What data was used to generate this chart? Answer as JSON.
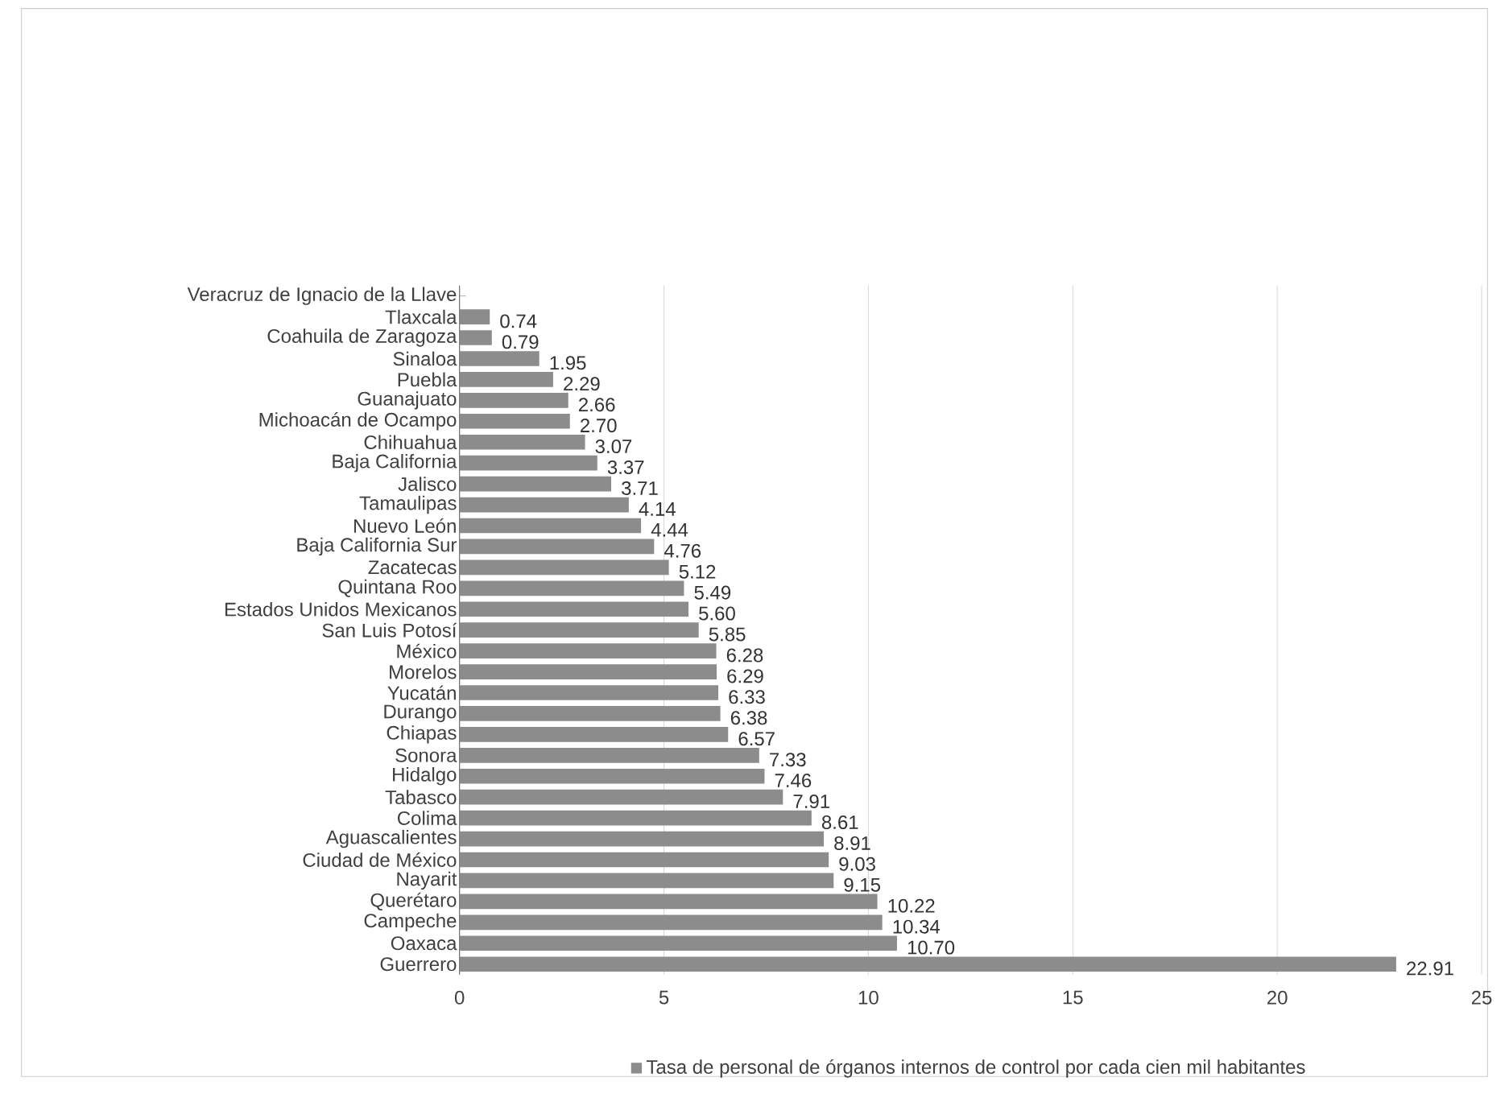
{
  "chart_data": {
    "type": "bar",
    "orientation": "horizontal",
    "categories": [
      "Veracruz de Ignacio de la Llave",
      "Tlaxcala",
      "Coahuila de Zaragoza",
      "Sinaloa",
      "Puebla",
      "Guanajuato",
      "Michoacán de Ocampo",
      "Chihuahua",
      "Baja California",
      "Jalisco",
      "Tamaulipas",
      "Nuevo León",
      "Baja California Sur",
      "Zacatecas",
      "Quintana Roo",
      "Estados Unidos Mexicanos",
      "San Luis Potosí",
      "México",
      "Morelos",
      "Yucatán",
      "Durango",
      "Chiapas",
      "Sonora",
      "Hidalgo",
      "Tabasco",
      "Colima",
      "Aguascalientes",
      "Ciudad de México",
      "Nayarit",
      "Querétaro",
      "Campeche",
      "Oaxaca",
      "Guerrero"
    ],
    "series": [
      {
        "name": "Tasa de personal de órganos internos de control por cada cien mil habitantes",
        "color": "#8c8c8c",
        "values": [
          null,
          0.74,
          0.79,
          1.95,
          2.29,
          2.66,
          2.7,
          3.07,
          3.37,
          3.71,
          4.14,
          4.44,
          4.76,
          5.12,
          5.49,
          5.6,
          5.85,
          6.28,
          6.29,
          6.33,
          6.38,
          6.57,
          7.33,
          7.46,
          7.91,
          8.61,
          8.91,
          9.03,
          9.15,
          10.22,
          10.34,
          10.7,
          22.91
        ],
        "value_labels": [
          null,
          "0.74",
          "0.79",
          "1.95",
          "2.29",
          "2.66",
          "2.70",
          "3.07",
          "3.37",
          "3.71",
          "4.14",
          "4.44",
          "4.76",
          "5.12",
          "5.49",
          "5.60",
          "5.85",
          "6.28",
          "6.29",
          "6.33",
          "6.38",
          "6.57",
          "7.33",
          "7.46",
          "7.91",
          "8.61",
          "8.91",
          "9.03",
          "9.15",
          "10.22",
          "10.34",
          "10.70",
          "22.91"
        ]
      }
    ],
    "xlim": [
      0,
      25
    ],
    "xticks": [
      0,
      5,
      10,
      15,
      20,
      25
    ],
    "grid": "x",
    "legend": "bottom"
  }
}
